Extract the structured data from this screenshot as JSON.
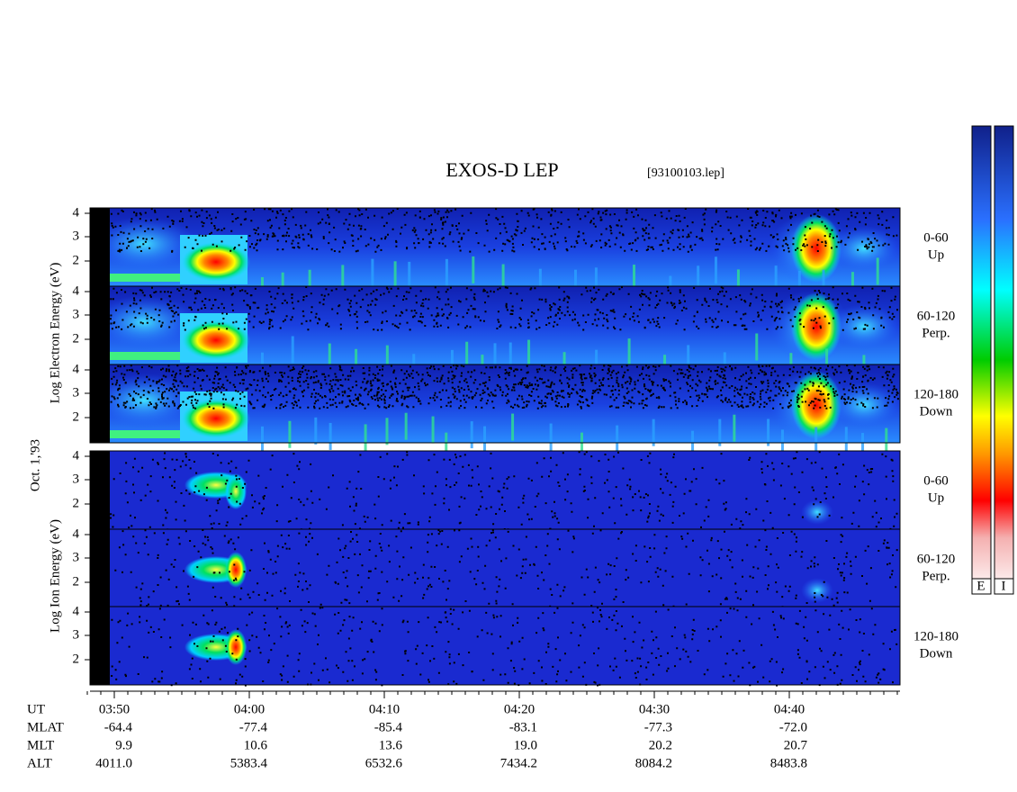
{
  "header": {
    "title": "EXOS-D LEP",
    "file": "[93100103.lep]"
  },
  "y_labels": {
    "electron": "Log Electron Energy (eV)",
    "date": "Oct. 1,'93",
    "ion": "Log Ion Energy (eV)"
  },
  "panels": [
    {
      "range": "0-60",
      "direction": "Up"
    },
    {
      "range": "60-120",
      "direction": "Perp."
    },
    {
      "range": "120-180",
      "direction": "Down"
    },
    {
      "range": "0-60",
      "direction": "Up"
    },
    {
      "range": "60-120",
      "direction": "Perp."
    },
    {
      "range": "120-180",
      "direction": "Down"
    }
  ],
  "energy_ticks": [
    4,
    3,
    2
  ],
  "ephemeris": {
    "rows": [
      {
        "label": "UT",
        "values": [
          "03:50",
          "04:00",
          "04:10",
          "04:20",
          "04:30",
          "04:40"
        ]
      },
      {
        "label": "MLAT",
        "values": [
          "-64.4",
          "-77.4",
          "-85.4",
          "-83.1",
          "-77.3",
          "-72.0"
        ]
      },
      {
        "label": "MLT",
        "values": [
          "9.9",
          "10.6",
          "13.6",
          "19.0",
          "20.2",
          "20.7"
        ]
      },
      {
        "label": "ALT",
        "values": [
          "4011.0",
          "5383.4",
          "6532.6",
          "7434.2",
          "8084.2",
          "8483.8"
        ]
      }
    ]
  },
  "color_bar_labels": [
    "E",
    "I"
  ]
}
